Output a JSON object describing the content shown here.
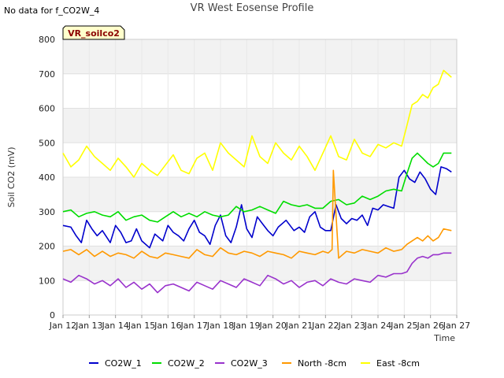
{
  "header": {
    "status_text": "No data for f_CO2W_4"
  },
  "chart_data": {
    "type": "line",
    "title": "VR West Eosense Profile",
    "xlabel": "Time",
    "ylabel": "Soil CO2 (mV)",
    "badge": "VR_soilco2",
    "ylim": [
      0,
      800
    ],
    "yticks": [
      0,
      100,
      200,
      300,
      400,
      500,
      600,
      700,
      800
    ],
    "xlim": [
      12,
      27
    ],
    "xticks": [
      {
        "x": 12,
        "label": "Jan 12"
      },
      {
        "x": 13,
        "label": "Jan 13"
      },
      {
        "x": 14,
        "label": "Jan 14"
      },
      {
        "x": 15,
        "label": "Jan 15"
      },
      {
        "x": 16,
        "label": "Jan 16"
      },
      {
        "x": 17,
        "label": "Jan 17"
      },
      {
        "x": 18,
        "label": "Jan 18"
      },
      {
        "x": 19,
        "label": "Jan 19"
      },
      {
        "x": 20,
        "label": "Jan 20"
      },
      {
        "x": 21,
        "label": "Jan 21"
      },
      {
        "x": 22,
        "label": "Jan 22"
      },
      {
        "x": 23,
        "label": "Jan 23"
      },
      {
        "x": 24,
        "label": "Jan 24"
      },
      {
        "x": 25,
        "label": "Jan 25"
      },
      {
        "x": 26,
        "label": "Jan 26"
      },
      {
        "x": 27,
        "label": "Jan 27"
      }
    ],
    "grid": true,
    "legend_position": "bottom",
    "series": [
      {
        "name": "CO2W_1",
        "color": "#0000cc",
        "x": [
          12.0,
          12.3,
          12.5,
          12.7,
          12.9,
          13.1,
          13.3,
          13.5,
          13.8,
          14.0,
          14.2,
          14.4,
          14.6,
          14.8,
          15.0,
          15.3,
          15.5,
          15.8,
          16.0,
          16.2,
          16.4,
          16.6,
          16.8,
          17.0,
          17.2,
          17.4,
          17.6,
          17.8,
          18.0,
          18.2,
          18.4,
          18.6,
          18.8,
          19.0,
          19.2,
          19.4,
          19.6,
          19.8,
          20.0,
          20.2,
          20.5,
          20.8,
          21.0,
          21.2,
          21.4,
          21.6,
          21.8,
          22.0,
          22.2,
          22.4,
          22.6,
          22.8,
          23.0,
          23.2,
          23.4,
          23.6,
          23.8,
          24.0,
          24.2,
          24.4,
          24.6,
          24.8,
          25.0,
          25.2,
          25.4,
          25.6,
          25.8,
          26.0,
          26.2,
          26.4,
          26.6,
          26.8
        ],
        "y": [
          260,
          255,
          230,
          210,
          275,
          250,
          230,
          245,
          210,
          260,
          240,
          210,
          215,
          250,
          215,
          195,
          235,
          215,
          260,
          240,
          230,
          215,
          250,
          275,
          240,
          230,
          205,
          260,
          290,
          230,
          210,
          255,
          320,
          250,
          225,
          285,
          265,
          245,
          230,
          255,
          275,
          245,
          255,
          240,
          285,
          300,
          255,
          245,
          245,
          320,
          280,
          265,
          280,
          275,
          290,
          260,
          310,
          305,
          320,
          315,
          310,
          400,
          420,
          395,
          385,
          415,
          395,
          365,
          350,
          430,
          425,
          415
        ]
      },
      {
        "name": "CO2W_2",
        "color": "#00dd00",
        "x": [
          12.0,
          12.3,
          12.6,
          12.9,
          13.2,
          13.5,
          13.8,
          14.1,
          14.4,
          14.7,
          15.0,
          15.3,
          15.6,
          15.9,
          16.2,
          16.5,
          16.8,
          17.1,
          17.4,
          17.7,
          18.0,
          18.3,
          18.6,
          18.9,
          19.2,
          19.5,
          19.8,
          20.1,
          20.4,
          20.7,
          21.0,
          21.3,
          21.6,
          21.9,
          22.2,
          22.5,
          22.8,
          23.1,
          23.4,
          23.7,
          24.0,
          24.3,
          24.6,
          24.9,
          25.1,
          25.3,
          25.5,
          25.7,
          25.9,
          26.1,
          26.3,
          26.5,
          26.8
        ],
        "y": [
          300,
          305,
          285,
          295,
          300,
          290,
          285,
          300,
          275,
          285,
          290,
          275,
          270,
          285,
          300,
          285,
          295,
          285,
          300,
          290,
          285,
          290,
          315,
          300,
          305,
          315,
          305,
          295,
          330,
          320,
          315,
          320,
          310,
          310,
          330,
          335,
          320,
          325,
          345,
          335,
          345,
          360,
          365,
          360,
          410,
          455,
          470,
          455,
          440,
          430,
          440,
          470,
          470
        ]
      },
      {
        "name": "CO2W_3",
        "color": "#9933cc",
        "x": [
          12.0,
          12.3,
          12.6,
          12.9,
          13.2,
          13.5,
          13.8,
          14.1,
          14.4,
          14.7,
          15.0,
          15.3,
          15.6,
          15.9,
          16.2,
          16.5,
          16.8,
          17.1,
          17.4,
          17.7,
          18.0,
          18.3,
          18.6,
          18.9,
          19.2,
          19.5,
          19.8,
          20.1,
          20.4,
          20.7,
          21.0,
          21.3,
          21.6,
          21.9,
          22.2,
          22.5,
          22.8,
          23.1,
          23.4,
          23.7,
          24.0,
          24.3,
          24.6,
          24.9,
          25.1,
          25.3,
          25.5,
          25.7,
          25.9,
          26.1,
          26.3,
          26.5,
          26.8
        ],
        "y": [
          105,
          95,
          115,
          105,
          90,
          100,
          85,
          105,
          80,
          95,
          75,
          90,
          65,
          85,
          90,
          80,
          70,
          95,
          85,
          75,
          100,
          90,
          80,
          105,
          95,
          85,
          115,
          105,
          90,
          100,
          80,
          95,
          100,
          85,
          105,
          95,
          90,
          105,
          100,
          95,
          115,
          110,
          120,
          120,
          125,
          150,
          165,
          170,
          165,
          175,
          175,
          180,
          180
        ]
      },
      {
        "name": "North -8cm",
        "color": "#ff9900",
        "x": [
          12.0,
          12.3,
          12.6,
          12.9,
          13.2,
          13.5,
          13.8,
          14.1,
          14.4,
          14.7,
          15.0,
          15.3,
          15.6,
          15.9,
          16.2,
          16.5,
          16.8,
          17.1,
          17.4,
          17.7,
          18.0,
          18.3,
          18.6,
          18.9,
          19.2,
          19.5,
          19.8,
          20.1,
          20.4,
          20.7,
          21.0,
          21.3,
          21.6,
          21.9,
          22.1,
          22.25,
          22.3,
          22.5,
          22.8,
          23.1,
          23.4,
          23.7,
          24.0,
          24.3,
          24.6,
          24.9,
          25.1,
          25.3,
          25.5,
          25.7,
          25.9,
          26.1,
          26.3,
          26.5,
          26.8
        ],
        "y": [
          185,
          190,
          175,
          190,
          170,
          185,
          170,
          180,
          175,
          165,
          185,
          170,
          165,
          180,
          175,
          170,
          165,
          190,
          175,
          170,
          195,
          180,
          175,
          185,
          180,
          170,
          185,
          180,
          175,
          165,
          185,
          180,
          175,
          185,
          180,
          190,
          420,
          165,
          185,
          180,
          190,
          185,
          180,
          195,
          185,
          190,
          205,
          215,
          225,
          215,
          230,
          215,
          225,
          250,
          245
        ]
      },
      {
        "name": "East -8cm",
        "color": "#ffff00",
        "x": [
          12.0,
          12.3,
          12.6,
          12.9,
          13.2,
          13.5,
          13.8,
          14.1,
          14.4,
          14.7,
          15.0,
          15.3,
          15.6,
          15.9,
          16.2,
          16.5,
          16.8,
          17.1,
          17.4,
          17.7,
          18.0,
          18.3,
          18.6,
          18.9,
          19.2,
          19.5,
          19.8,
          20.1,
          20.4,
          20.7,
          21.0,
          21.3,
          21.6,
          21.9,
          22.2,
          22.5,
          22.8,
          23.1,
          23.4,
          23.7,
          24.0,
          24.3,
          24.6,
          24.9,
          25.1,
          25.3,
          25.5,
          25.7,
          25.9,
          26.1,
          26.3,
          26.5,
          26.8
        ],
        "y": [
          470,
          430,
          450,
          490,
          460,
          440,
          420,
          455,
          430,
          400,
          440,
          420,
          405,
          435,
          465,
          420,
          410,
          455,
          470,
          420,
          500,
          470,
          450,
          430,
          520,
          460,
          440,
          500,
          470,
          450,
          490,
          460,
          420,
          470,
          520,
          460,
          450,
          510,
          470,
          460,
          495,
          485,
          500,
          490,
          550,
          610,
          620,
          640,
          630,
          660,
          670,
          710,
          690
        ]
      }
    ]
  }
}
